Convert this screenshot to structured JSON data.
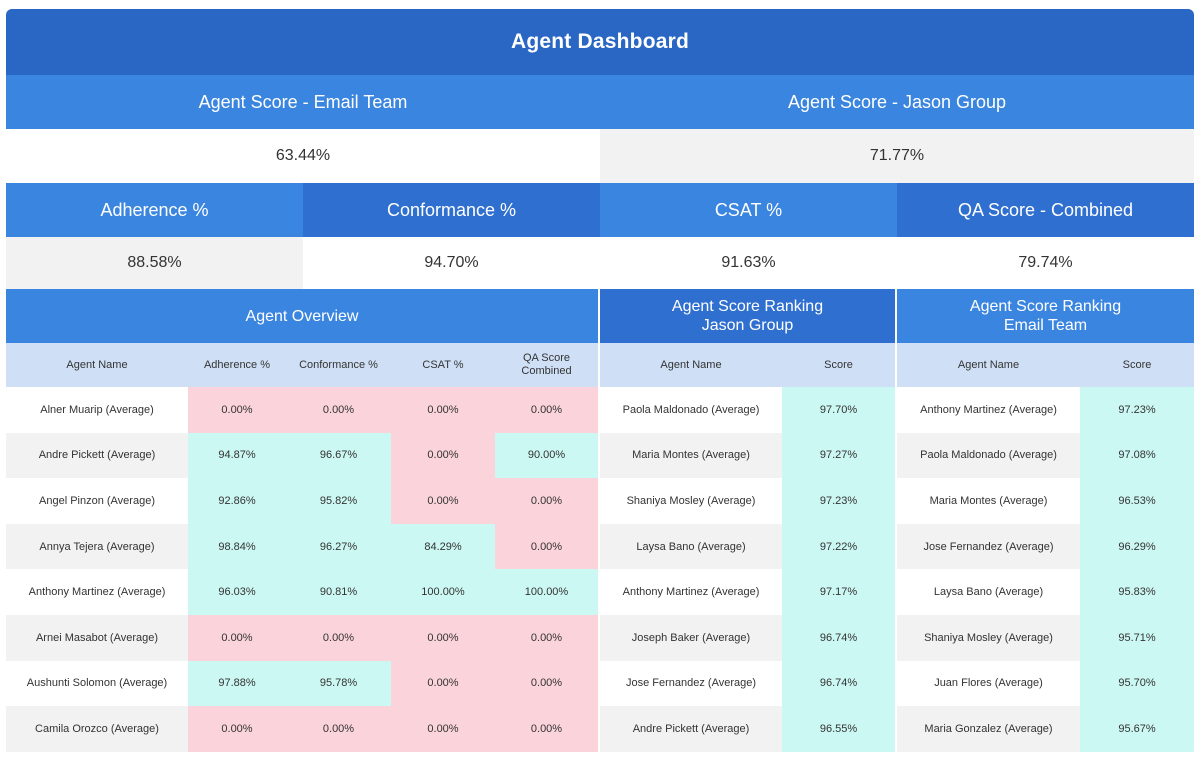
{
  "title": "Agent Dashboard",
  "scores": {
    "email_label": "Agent Score - Email Team",
    "email_value": "63.44%",
    "jason_label": "Agent Score - Jason Group",
    "jason_value": "71.77%"
  },
  "kpis": [
    {
      "label": "Adherence %",
      "value": "88.58%"
    },
    {
      "label": "Conformance %",
      "value": "94.70%"
    },
    {
      "label": "CSAT %",
      "value": "91.63%"
    },
    {
      "label": "QA Score - Combined",
      "value": "79.74%"
    }
  ],
  "overview": {
    "title": "Agent Overview",
    "columns": [
      "Agent Name",
      "Adherence %",
      "Conformance %",
      "CSAT %",
      "QA Score Combined"
    ],
    "rows": [
      {
        "name": "Alner Muarip (Average)",
        "values": [
          "0.00%",
          "0.00%",
          "0.00%",
          "0.00%"
        ],
        "status": [
          "low",
          "low",
          "low",
          "low"
        ]
      },
      {
        "name": "Andre Pickett (Average)",
        "values": [
          "94.87%",
          "96.67%",
          "0.00%",
          "90.00%"
        ],
        "status": [
          "high",
          "high",
          "low",
          "high"
        ]
      },
      {
        "name": "Angel Pinzon (Average)",
        "values": [
          "92.86%",
          "95.82%",
          "0.00%",
          "0.00%"
        ],
        "status": [
          "high",
          "high",
          "low",
          "low"
        ]
      },
      {
        "name": "Annya Tejera (Average)",
        "values": [
          "98.84%",
          "96.27%",
          "84.29%",
          "0.00%"
        ],
        "status": [
          "high",
          "high",
          "high",
          "low"
        ]
      },
      {
        "name": "Anthony Martinez (Average)",
        "values": [
          "96.03%",
          "90.81%",
          "100.00%",
          "100.00%"
        ],
        "status": [
          "high",
          "high",
          "high",
          "high"
        ]
      },
      {
        "name": "Arnei Masabot (Average)",
        "values": [
          "0.00%",
          "0.00%",
          "0.00%",
          "0.00%"
        ],
        "status": [
          "low",
          "low",
          "low",
          "low"
        ]
      },
      {
        "name": "Aushunti Solomon (Average)",
        "values": [
          "97.88%",
          "95.78%",
          "0.00%",
          "0.00%"
        ],
        "status": [
          "high",
          "high",
          "low",
          "low"
        ]
      },
      {
        "name": "Camila Orozco (Average)",
        "values": [
          "0.00%",
          "0.00%",
          "0.00%",
          "0.00%"
        ],
        "status": [
          "low",
          "low",
          "low",
          "low"
        ]
      }
    ]
  },
  "ranking_jason": {
    "title_line1": "Agent Score Ranking",
    "title_line2": "Jason Group",
    "columns": [
      "Agent Name",
      "Score"
    ],
    "rows": [
      {
        "name": "Paola Maldonado (Average)",
        "score": "97.70%"
      },
      {
        "name": "Maria Montes (Average)",
        "score": "97.27%"
      },
      {
        "name": "Shaniya Mosley (Average)",
        "score": "97.23%"
      },
      {
        "name": "Laysa Bano (Average)",
        "score": "97.22%"
      },
      {
        "name": "Anthony Martinez (Average)",
        "score": "97.17%"
      },
      {
        "name": "Joseph Baker (Average)",
        "score": "96.74%"
      },
      {
        "name": "Jose Fernandez (Average)",
        "score": "96.74%"
      },
      {
        "name": "Andre Pickett (Average)",
        "score": "96.55%"
      }
    ]
  },
  "ranking_email": {
    "title_line1": "Agent Score Ranking",
    "title_line2": "Email Team",
    "columns": [
      "Agent Name",
      "Score"
    ],
    "rows": [
      {
        "name": "Anthony Martinez (Average)",
        "score": "97.23%"
      },
      {
        "name": "Paola Maldonado (Average)",
        "score": "97.08%"
      },
      {
        "name": "Maria Montes (Average)",
        "score": "96.53%"
      },
      {
        "name": "Jose Fernandez (Average)",
        "score": "96.29%"
      },
      {
        "name": "Laysa Bano (Average)",
        "score": "95.83%"
      },
      {
        "name": "Shaniya Mosley (Average)",
        "score": "95.71%"
      },
      {
        "name": "Juan Flores (Average)",
        "score": "95.70%"
      },
      {
        "name": "Maria Gonzalez (Average)",
        "score": "95.67%"
      }
    ]
  },
  "colors": {
    "header_dark": "#2a67c4",
    "header_blue": "#3a85df",
    "column_header": "#cfe0f6",
    "low_value": "#fbd3da",
    "high_value": "#ccf8f3"
  }
}
